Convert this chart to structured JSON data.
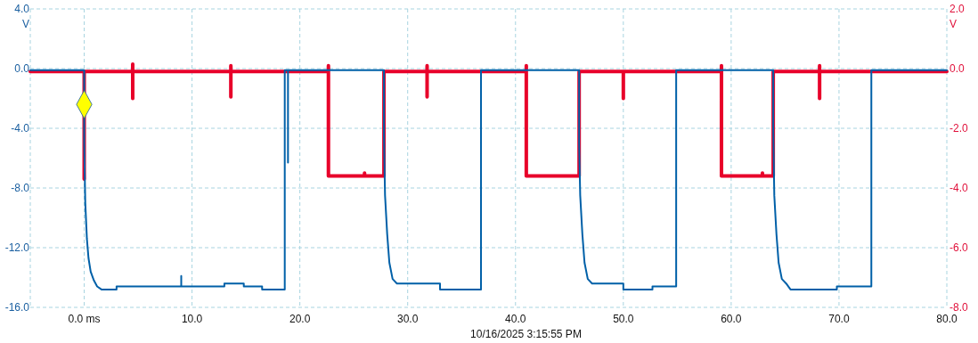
{
  "chart_data": {
    "type": "line",
    "ylabel": "V",
    "y2label": "V",
    "xlim": [
      -5,
      80
    ],
    "xticks": [
      {
        "value": 0,
        "label": "0.0 ms"
      },
      {
        "value": 10,
        "label": "10.0"
      },
      {
        "value": 20,
        "label": "20.0"
      },
      {
        "value": 30,
        "label": "30.0"
      },
      {
        "value": 40,
        "label": "40.0"
      },
      {
        "value": 50,
        "label": "50.0"
      },
      {
        "value": 60,
        "label": "60.0"
      },
      {
        "value": 70,
        "label": "70.0"
      },
      {
        "value": 80,
        "label": "80.0"
      }
    ],
    "ylim": [
      -16,
      4
    ],
    "yticks": [
      {
        "value": -16,
        "label": "-16.0"
      },
      {
        "value": -12,
        "label": "-12.0"
      },
      {
        "value": -8,
        "label": "-8.0"
      },
      {
        "value": -4,
        "label": "-4.0"
      },
      {
        "value": 0,
        "label": "0.0"
      },
      {
        "value": 4,
        "label": "4.0"
      }
    ],
    "y2lim": [
      -8,
      2
    ],
    "y2ticks": [
      {
        "value": -8,
        "label": "-8.0"
      },
      {
        "value": -6,
        "label": "-6.0"
      },
      {
        "value": -4,
        "label": "-4.0"
      },
      {
        "value": -2,
        "label": "-2.0"
      },
      {
        "value": 0,
        "label": "0.0"
      },
      {
        "value": 2,
        "label": "2.0"
      }
    ],
    "grid": true,
    "line_style": "solid",
    "annotations": [
      "10/16/2025 3:15:55 PM"
    ],
    "series": [
      {
        "axis": "y2",
        "color": "#e8002a",
        "x": [
          -5,
          0,
          0,
          0,
          4.5,
          4.5,
          4.5,
          4.5,
          13.6,
          13.6,
          13.6,
          13.6,
          22.65,
          22.65,
          22.65,
          26.0,
          26.0,
          26.0,
          27.8,
          27.8,
          27.8,
          31.8,
          31.8,
          31.8,
          31.8,
          41.0,
          41.0,
          41.0,
          45.9,
          45.9,
          45.9,
          50.0,
          50.0,
          50.0,
          59.1,
          59.1,
          59.1,
          62.9,
          62.9,
          62.9,
          63.9,
          63.9,
          63.9,
          68.2,
          68.2,
          68.2,
          68.2,
          80
        ],
        "values": [
          -0.1,
          -0.1,
          -3.7,
          -0.1,
          -0.1,
          0.15,
          -1.0,
          -0.1,
          -0.1,
          0.1,
          -0.95,
          -0.1,
          -0.1,
          0.1,
          -3.6,
          -3.6,
          -3.5,
          -3.6,
          -3.6,
          -2.4,
          -0.1,
          -0.1,
          0.1,
          -0.95,
          -0.1,
          -0.1,
          0.1,
          -3.6,
          -3.6,
          -2.4,
          -0.1,
          -0.1,
          -1.0,
          -0.1,
          -0.1,
          0.1,
          -3.6,
          -3.6,
          -3.5,
          -3.6,
          -3.6,
          -1.7,
          -0.1,
          -0.1,
          0.1,
          -1.0,
          -0.1,
          -0.1
        ]
      },
      {
        "axis": "y",
        "color": "#0060a8",
        "x": [
          -5,
          0,
          0,
          0.1,
          0.25,
          0.4,
          0.6,
          0.9,
          1.2,
          1.6,
          3.0,
          3.0,
          9.0,
          9.0,
          9.0,
          13.0,
          13.0,
          14.8,
          14.8,
          16.5,
          16.5,
          18.6,
          18.6,
          18.9,
          18.9,
          18.9,
          27.8,
          27.8,
          27.9,
          28.1,
          28.3,
          28.6,
          29.0,
          33.0,
          33.0,
          36.8,
          36.8,
          45.9,
          45.9,
          46.0,
          46.2,
          46.4,
          46.7,
          47.1,
          50.0,
          50.0,
          52.7,
          52.7,
          54.9,
          54.9,
          63.9,
          63.9,
          64.0,
          64.2,
          64.4,
          64.7,
          65.1,
          65.5,
          69.8,
          69.8,
          73.0,
          73.0,
          80
        ],
        "values": [
          -0.1,
          -0.1,
          -5.0,
          -9.0,
          -11.4,
          -12.7,
          -13.6,
          -14.2,
          -14.6,
          -14.8,
          -14.8,
          -14.6,
          -14.6,
          -13.9,
          -14.6,
          -14.6,
          -14.4,
          -14.4,
          -14.6,
          -14.6,
          -14.8,
          -14.8,
          -0.1,
          -0.1,
          -6.3,
          -0.1,
          -0.1,
          -4.5,
          -8.5,
          -11.1,
          -13.0,
          -14.1,
          -14.4,
          -14.4,
          -14.8,
          -14.8,
          -0.1,
          -0.1,
          -5.0,
          -8.5,
          -11.1,
          -13.0,
          -14.1,
          -14.4,
          -14.4,
          -14.8,
          -14.8,
          -14.6,
          -14.6,
          -0.1,
          -0.1,
          -4.0,
          -8.5,
          -11.1,
          -13.0,
          -14.1,
          -14.4,
          -14.8,
          -14.8,
          -14.6,
          -14.6,
          -0.1,
          -0.1
        ]
      },
      {
        "type": "scatter",
        "axis": "y",
        "color": "#ffff00",
        "marker": "diamond",
        "x": [
          0
        ],
        "values": [
          -2.4
        ]
      }
    ]
  }
}
